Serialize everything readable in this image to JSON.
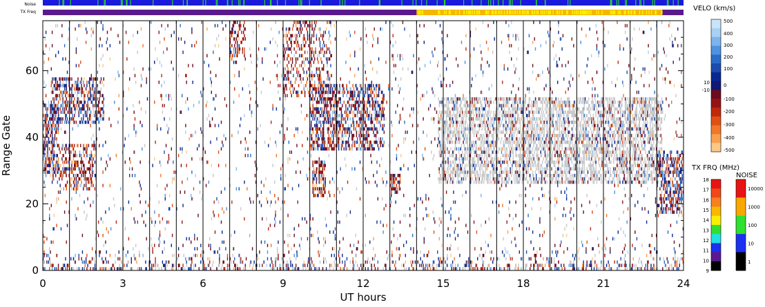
{
  "strip_labels": {
    "noise": "Noise",
    "txfreq": "TX Freq"
  },
  "chart_data": {
    "type": "heatmap",
    "title": "",
    "xlabel": "UT hours",
    "ylabel": "Range Gate",
    "xlim": [
      0,
      24
    ],
    "ylim": [
      0,
      75
    ],
    "x_ticks": [
      "0",
      "3",
      "6",
      "9",
      "12",
      "15",
      "18",
      "21",
      "24"
    ],
    "y_ticks": [
      "0",
      "20",
      "40",
      "60"
    ],
    "grid": "vertical lines every hour",
    "regions": [
      {
        "name": "early-mixed",
        "t": [
          0.0,
          0.6
        ],
        "g": [
          28,
          50
        ],
        "kind": "mixed",
        "density": 0.55
      },
      {
        "name": "morning-band",
        "t": [
          0.3,
          2.3
        ],
        "g": [
          44,
          58
        ],
        "kind": "mixed",
        "density": 0.45
      },
      {
        "name": "morning-diagonal",
        "t": [
          0.6,
          2.0
        ],
        "g": [
          24,
          38
        ],
        "kind": "negative",
        "density": 0.35
      },
      {
        "name": "gate-70-patch",
        "t": [
          7.0,
          7.6
        ],
        "g": [
          62,
          75
        ],
        "kind": "negative",
        "density": 0.3
      },
      {
        "name": "descending-arc-upper",
        "t": [
          9.0,
          10.8
        ],
        "g": [
          52,
          75
        ],
        "kind": "negative",
        "density": 0.25
      },
      {
        "name": "descending-arc-lower",
        "t": [
          10.0,
          12.8
        ],
        "g": [
          36,
          56
        ],
        "kind": "mixed",
        "density": 0.45
      },
      {
        "name": "patch-10h",
        "t": [
          10.1,
          10.6
        ],
        "g": [
          22,
          33
        ],
        "kind": "negative",
        "density": 0.6
      },
      {
        "name": "patch-13h",
        "t": [
          13.0,
          13.4
        ],
        "g": [
          23,
          29
        ],
        "kind": "negative",
        "density": 0.55
      },
      {
        "name": "evening-ground-band",
        "t": [
          14.8,
          23.2
        ],
        "g": [
          26,
          52
        ],
        "kind": "gray",
        "density": 0.5
      },
      {
        "name": "late-patch",
        "t": [
          23.0,
          24.0
        ],
        "g": [
          17,
          36
        ],
        "kind": "mixed",
        "density": 0.45
      },
      {
        "name": "near-range",
        "t": [
          0.0,
          24.0
        ],
        "g": [
          0,
          8
        ],
        "kind": "near",
        "density": 0.35
      },
      {
        "name": "background",
        "t": [
          0.0,
          24.0
        ],
        "g": [
          0,
          75
        ],
        "kind": "sparse",
        "density": 0.035
      }
    ],
    "tx_freq_segments": [
      {
        "t": [
          0,
          14.0
        ],
        "color": "#5a1a8c"
      },
      {
        "t": [
          14.0,
          23.2
        ],
        "color": "#f7b500"
      },
      {
        "t": [
          23.2,
          24
        ],
        "color": "#5a1a8c"
      }
    ],
    "noise_strip": {
      "base": "#1a1adc",
      "flecks": "#2ad42a"
    }
  },
  "velo_legend": {
    "title": "VELO (km/s)",
    "labels": [
      "500",
      "400",
      "300",
      "200",
      "100",
      "10",
      "0",
      "-10",
      "-100",
      "-200",
      "-300",
      "-400",
      "-500"
    ],
    "colors_top_to_bottom": [
      "#c8e4f8",
      "#a8d0f4",
      "#7cb4ec",
      "#4e92e0",
      "#2a6cc8",
      "#1c4cb0",
      "#0a2890",
      "#101878",
      "#6c0c1e",
      "#941414",
      "#c0280c",
      "#e05010",
      "#f07828",
      "#f8a050",
      "#fcc888"
    ]
  },
  "txfrq_legend": {
    "title": "TX FRQ (MHz)",
    "labels": [
      "18",
      "17",
      "16",
      "15",
      "14",
      "13",
      "12",
      "11",
      "10",
      "9"
    ],
    "colors_top_to_bottom": [
      "#e81414",
      "#f04818",
      "#f88020",
      "#f8b800",
      "#f8f000",
      "#30e030",
      "#20e0e0",
      "#1c30f0",
      "#5c1890",
      "#000000"
    ]
  },
  "noise_legend": {
    "title": "NOISE",
    "labels": [
      "10000",
      "1000",
      "100",
      "10",
      "1"
    ],
    "colors_top_to_bottom": [
      "#e81414",
      "#f8a800",
      "#30e030",
      "#1c30f0",
      "#000000"
    ]
  }
}
